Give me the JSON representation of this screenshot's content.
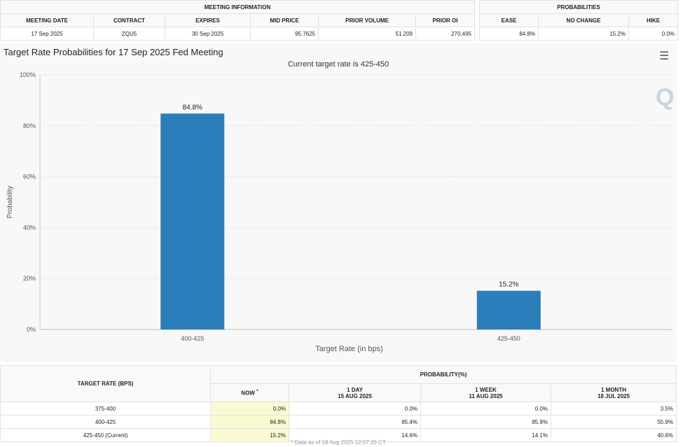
{
  "meeting_info": {
    "title": "MEETING INFORMATION",
    "headers": [
      "MEETING DATE",
      "CONTRACT",
      "EXPIRES",
      "MID PRICE",
      "PRIOR VOLUME",
      "PRIOR OI"
    ],
    "values": [
      "17 Sep 2025",
      "ZQU5",
      "30 Sep 2025",
      "95.7625",
      "51,209",
      "270,495"
    ]
  },
  "probabilities": {
    "title": "PROBABILITIES",
    "headers": [
      "EASE",
      "NO CHANGE",
      "HIKE"
    ],
    "values": [
      "84.8%",
      "15.2%",
      "0.0%"
    ]
  },
  "chart_data": {
    "type": "bar",
    "title": "Target Rate Probabilities for 17 Sep 2025 Fed Meeting",
    "subtitle": "Current target rate is 425-450",
    "xlabel": "Target Rate (in bps)",
    "ylabel": "Probability",
    "categories": [
      "400-425",
      "425-450"
    ],
    "values": [
      84.8,
      15.2
    ],
    "data_labels": [
      "84.8%",
      "15.2%"
    ],
    "ylim": [
      0,
      100
    ],
    "yticks": [
      "0%",
      "20%",
      "40%",
      "60%",
      "80%",
      "100%"
    ],
    "grid": true,
    "bar_color": "#2a7fba"
  },
  "menu_icon": "hamburger-icon",
  "prob_table": {
    "col1": "TARGET RATE (BPS)",
    "group": "PROBABILITY(%)",
    "cols": [
      {
        "l1": "NOW",
        "l2": "*"
      },
      {
        "l1": "1 DAY",
        "l2": "15 AUG 2025"
      },
      {
        "l1": "1 WEEK",
        "l2": "11 AUG 2025"
      },
      {
        "l1": "1 MONTH",
        "l2": "18 JUL 2025"
      }
    ],
    "rows": [
      {
        "rate": "375-400",
        "vals": [
          "0.0%",
          "0.0%",
          "0.0%",
          "3.5%"
        ]
      },
      {
        "rate": "400-425",
        "vals": [
          "84.8%",
          "85.4%",
          "85.9%",
          "55.9%"
        ]
      },
      {
        "rate": "425-450 (Current)",
        "vals": [
          "15.2%",
          "14.6%",
          "14.1%",
          "40.6%"
        ]
      }
    ]
  },
  "footnote": "* Data as of 18 Aug 2025 12:07:20 CT"
}
